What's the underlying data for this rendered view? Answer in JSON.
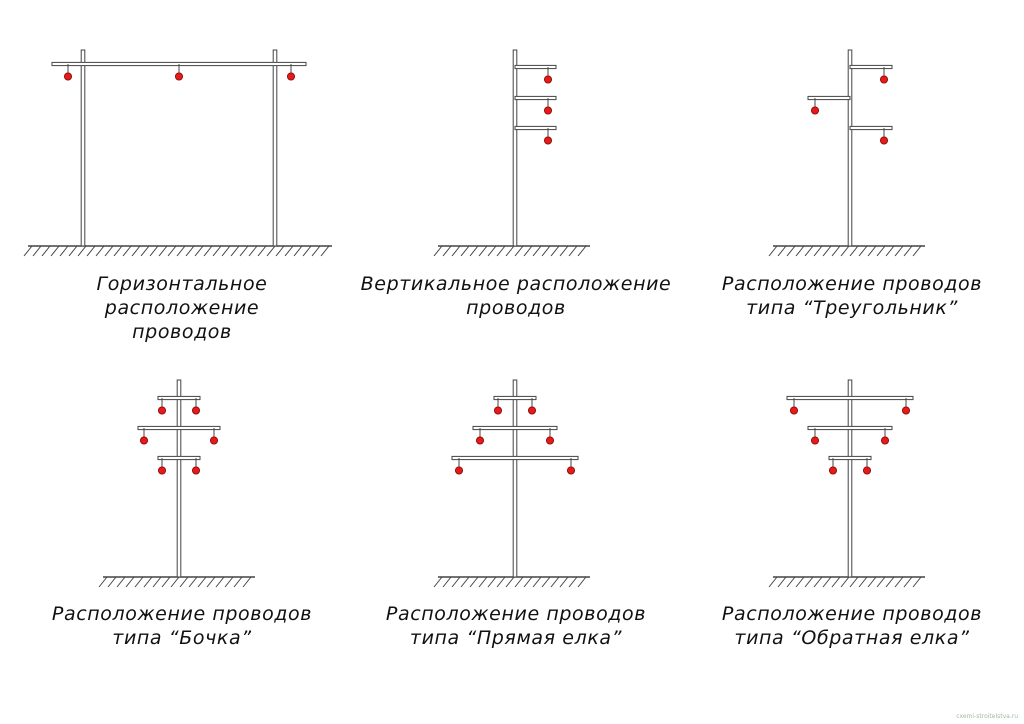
{
  "colors": {
    "pole_fill": "#ffffff",
    "line": "#444444",
    "insulator": "#e31b1b",
    "insulator_stroke": "#8a0000",
    "text": "#111111"
  },
  "diagrams": [
    {
      "id": "horizontal",
      "line1": "Горизонтальное расположение",
      "line2": "проводов"
    },
    {
      "id": "vertical",
      "line1": "Вертикальное расположение",
      "line2": "проводов"
    },
    {
      "id": "triangle",
      "line1": "Расположение проводов",
      "line2": "типа “Треугольник”"
    },
    {
      "id": "barrel",
      "line1": "Расположение проводов",
      "line2": "типа “Бочка”"
    },
    {
      "id": "straight-tree",
      "line1": "Расположение проводов",
      "line2": "типа “Прямая елка”"
    },
    {
      "id": "reverse-tree",
      "line1": "Расположение проводов",
      "line2": "типа “Обратная елка”"
    }
  ],
  "watermark": "cxemi-stroitelstva.ru"
}
